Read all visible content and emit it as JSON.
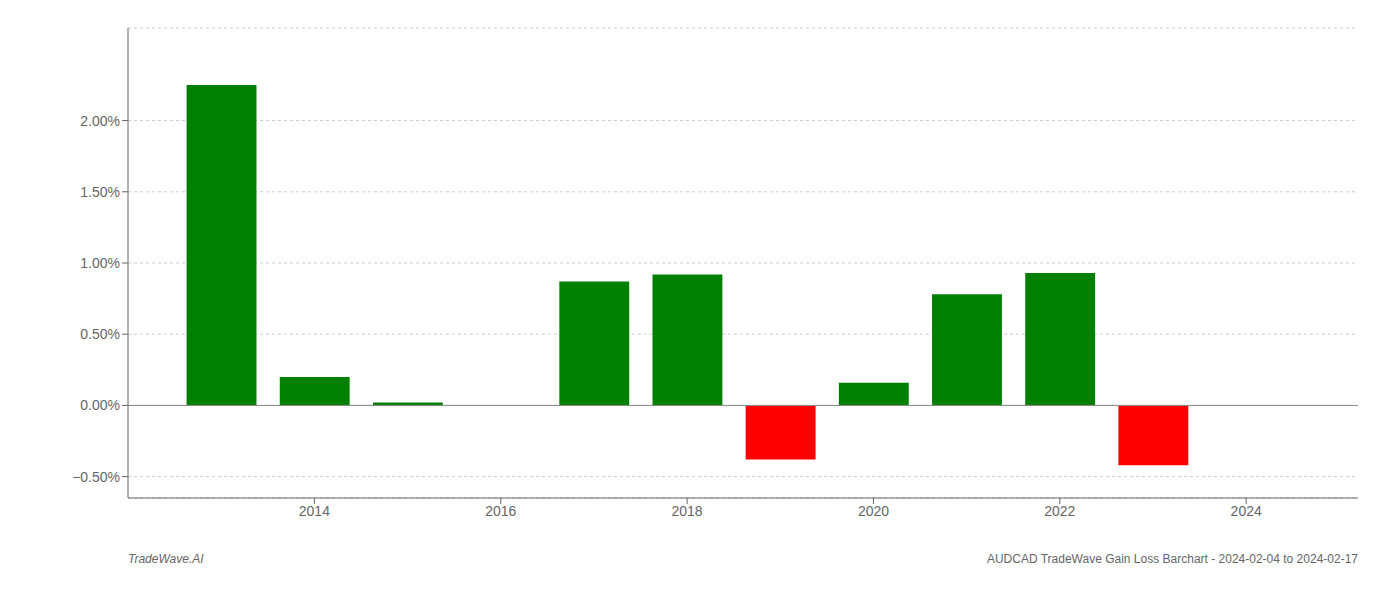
{
  "chart_data": {
    "type": "bar",
    "x": [
      2013,
      2014,
      2015,
      2017,
      2018,
      2019,
      2020,
      2021,
      2022,
      2023
    ],
    "values": [
      2.25,
      0.2,
      0.02,
      0.87,
      0.92,
      -0.38,
      0.16,
      0.78,
      0.93,
      -0.42
    ],
    "colors": [
      "#008000",
      "#008000",
      "#008000",
      "#008000",
      "#008000",
      "#ff0000",
      "#008000",
      "#008000",
      "#008000",
      "#ff0000"
    ],
    "xlim": [
      2012.0,
      2025.2
    ],
    "xticks": [
      2014,
      2016,
      2018,
      2020,
      2022,
      2024
    ],
    "ylim": [
      -0.65,
      2.65
    ],
    "yticks": [
      {
        "value": -0.5,
        "label": "−0.50%"
      },
      {
        "value": 0.0,
        "label": "0.00%"
      },
      {
        "value": 0.5,
        "label": "0.50%"
      },
      {
        "value": 1.0,
        "label": "1.00%"
      },
      {
        "value": 1.5,
        "label": "1.50%"
      },
      {
        "value": 2.0,
        "label": "2.00%"
      }
    ],
    "grid": true,
    "annotations": [
      "TradeWave.AI",
      "AUDCAD TradeWave Gain Loss Barchart - 2024-02-04 to 2024-02-17"
    ]
  }
}
